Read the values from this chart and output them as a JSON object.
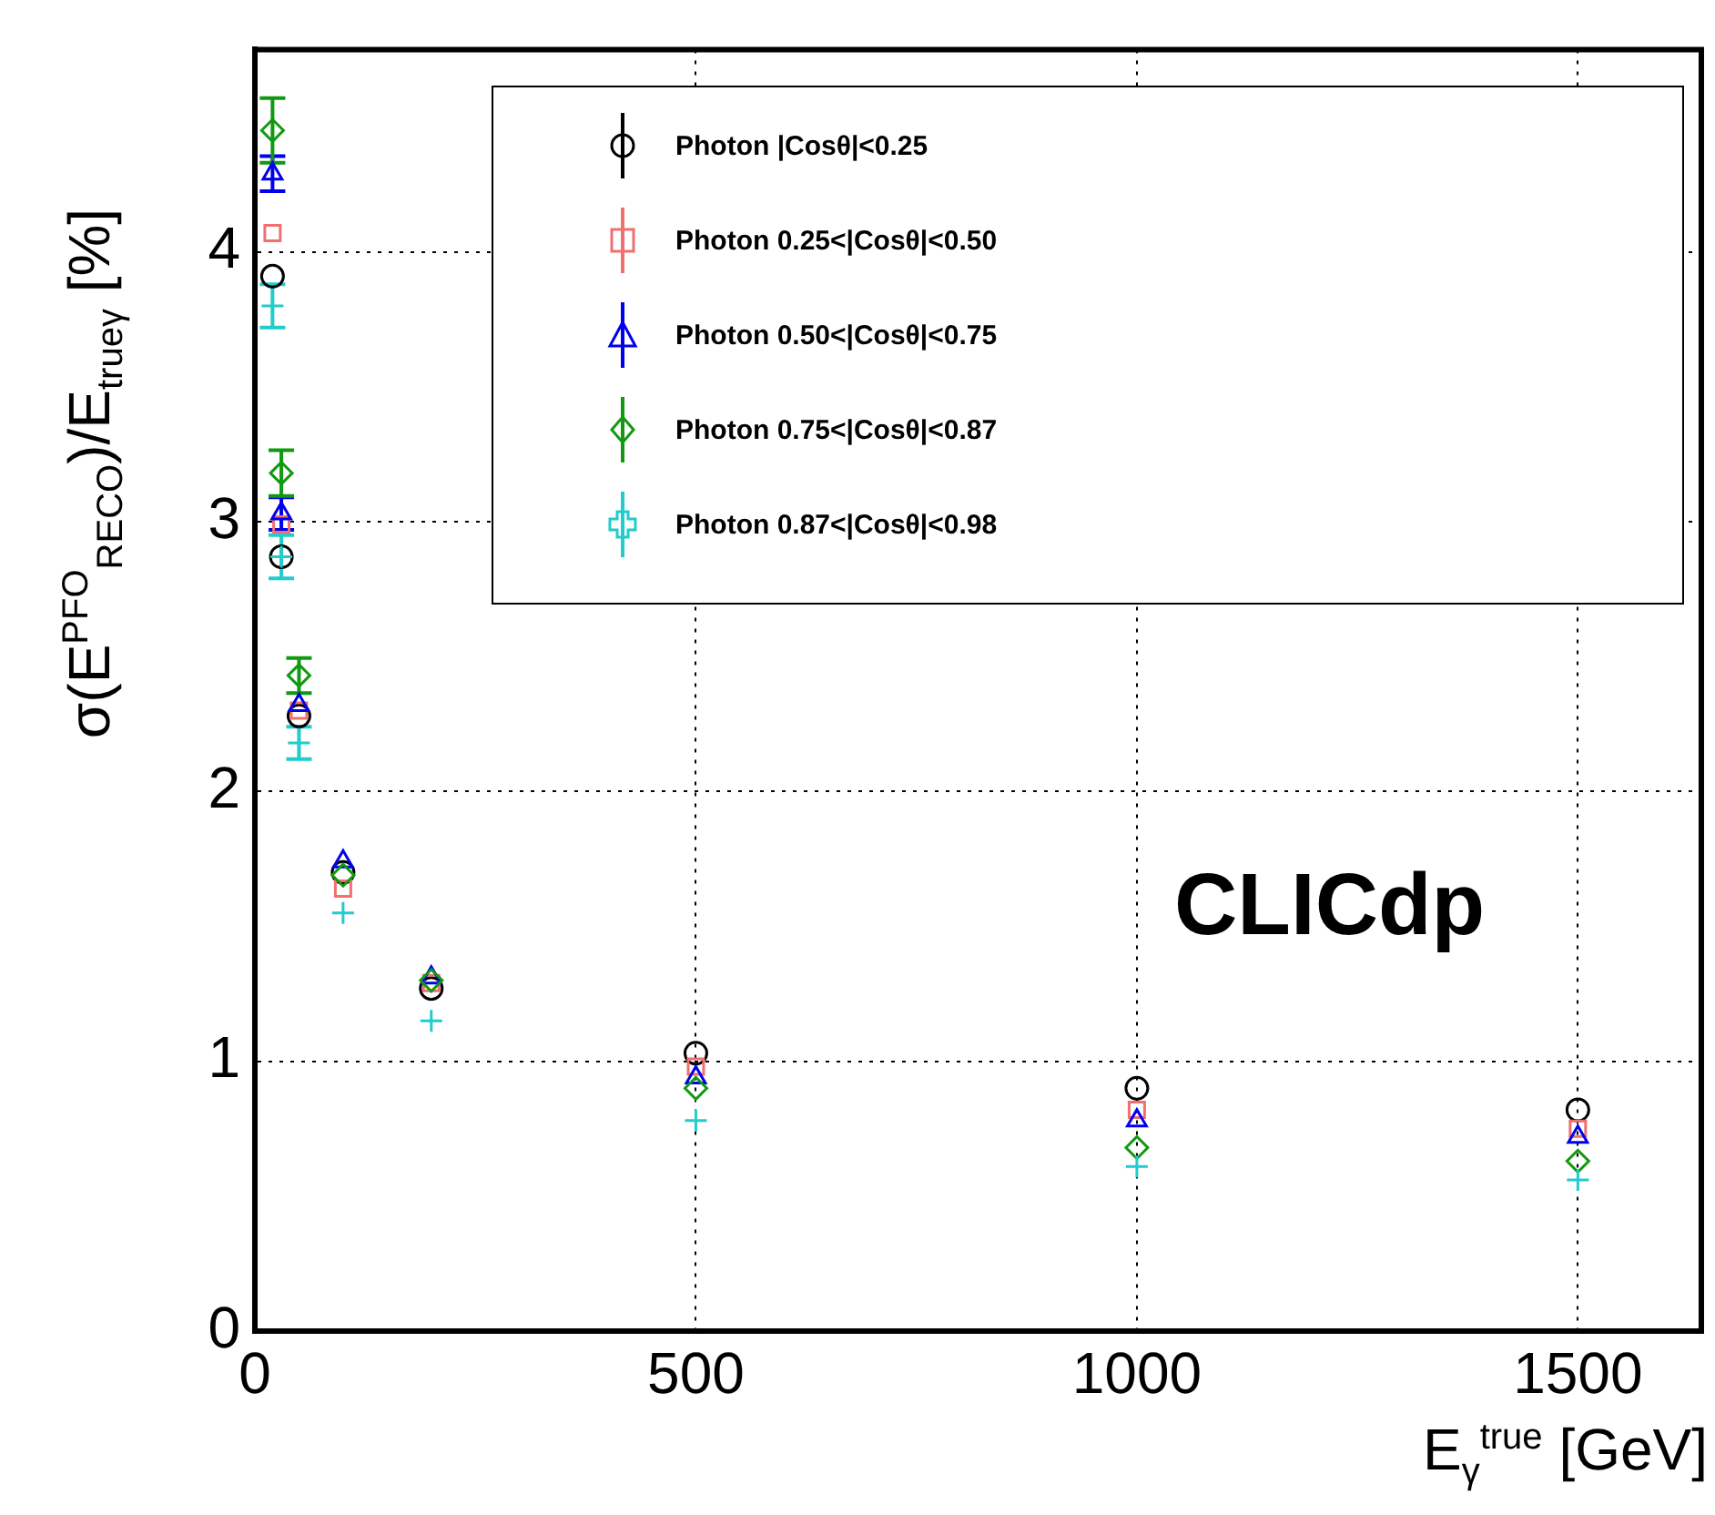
{
  "chart_data": {
    "type": "scatter",
    "xlabel": "E$_{γ}$$^{true}$ [GeV]",
    "ylabel": "σ(E$^{PFO}$$_{RECO}$)/E$_{trueγ}$ [%]",
    "annotations": [
      "CLICdp"
    ],
    "xlim": [
      0,
      1640
    ],
    "xticks": [
      0,
      500,
      1000,
      1500
    ],
    "ylim": [
      0,
      4.75
    ],
    "yticks": [
      0,
      1,
      2,
      3,
      4
    ],
    "grid": true,
    "legend": "top",
    "x": [
      20,
      30,
      50,
      100,
      200,
      500,
      1000,
      1500
    ],
    "series": [
      {
        "name": "Photon |Cosθ|<0.25",
        "color": "#000000",
        "marker": "circle",
        "values": [
          3.91,
          2.87,
          2.28,
          1.7,
          1.27,
          1.03,
          0.9,
          0.82
        ]
      },
      {
        "name": "Photon 0.25<|Cosθ|<0.50",
        "color": "#f07070",
        "marker": "square",
        "values": [
          4.07,
          2.99,
          2.3,
          1.64,
          1.29,
          0.98,
          0.82,
          0.75
        ]
      },
      {
        "name": "Photon 0.50<|Cosθ|<0.75",
        "color": "#0000ee",
        "marker": "triangle",
        "values": [
          4.29,
          3.03,
          2.32,
          1.74,
          1.31,
          0.94,
          0.78,
          0.72
        ],
        "errors": [
          0.065,
          0.06,
          null,
          null,
          null,
          null,
          null,
          null
        ]
      },
      {
        "name": "Photon 0.75<|Cosθ|<0.87",
        "color": "#119911",
        "marker": "diamond",
        "values": [
          4.45,
          3.18,
          2.43,
          1.69,
          1.3,
          0.9,
          0.68,
          0.63
        ],
        "errors": [
          0.12,
          0.085,
          0.065,
          null,
          null,
          null,
          null,
          null
        ]
      },
      {
        "name": "Photon 0.87<|Cosθ|<0.98",
        "color": "#22cccc",
        "marker": "cross",
        "values": [
          3.8,
          2.87,
          2.18,
          1.55,
          1.15,
          0.78,
          0.61,
          0.56
        ],
        "errors": [
          0.08,
          0.08,
          0.06,
          null,
          null,
          null,
          null,
          null
        ]
      }
    ]
  }
}
